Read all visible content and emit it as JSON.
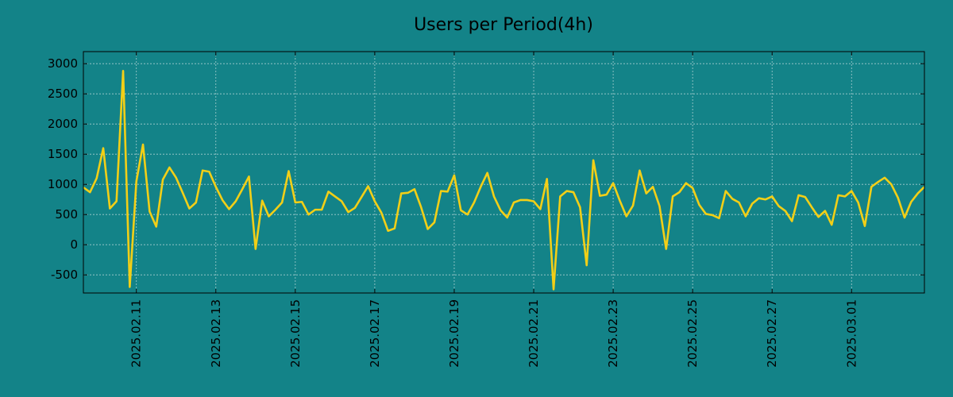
{
  "colors": {
    "background": "#138388",
    "line": "#f2cf17",
    "grid": "#d8e6e6",
    "text": "#000000"
  },
  "chart_data": {
    "type": "line",
    "title": "Users per Period(4h)",
    "xlabel": "",
    "ylabel": "",
    "grid": true,
    "legend": "none",
    "x_start": "2025.02.09 16:00",
    "x_interval_hours": 4,
    "xlim_periods": [
      0,
      127
    ],
    "ylim": [
      -800,
      3200
    ],
    "yticks": [
      -500,
      0,
      500,
      1000,
      1500,
      2000,
      2500,
      3000
    ],
    "xticks": [
      {
        "label": "2025.02.11",
        "period": 8
      },
      {
        "label": "2025.02.13",
        "period": 20
      },
      {
        "label": "2025.02.15",
        "period": 32
      },
      {
        "label": "2025.02.17",
        "period": 44
      },
      {
        "label": "2025.02.19",
        "period": 56
      },
      {
        "label": "2025.02.21",
        "period": 68
      },
      {
        "label": "2025.02.23",
        "period": 80
      },
      {
        "label": "2025.02.25",
        "period": 92
      },
      {
        "label": "2025.02.27",
        "period": 104
      },
      {
        "label": "2025.03.01",
        "period": 116
      }
    ],
    "series": [
      {
        "name": "Users",
        "values": [
          950,
          870,
          1100,
          1600,
          600,
          720,
          2880,
          -700,
          1050,
          1660,
          550,
          300,
          1080,
          1280,
          1110,
          860,
          600,
          700,
          1230,
          1210,
          960,
          740,
          590,
          720,
          920,
          1130,
          -70,
          730,
          470,
          580,
          700,
          1220,
          700,
          710,
          500,
          580,
          580,
          880,
          800,
          720,
          540,
          610,
          790,
          970,
          720,
          530,
          230,
          270,
          850,
          860,
          920,
          620,
          260,
          370,
          890,
          880,
          1150,
          570,
          500,
          700,
          960,
          1190,
          800,
          570,
          450,
          700,
          740,
          740,
          720,
          590,
          1090,
          -740,
          800,
          890,
          870,
          620,
          -340,
          1400,
          810,
          830,
          1020,
          730,
          470,
          650,
          1230,
          850,
          960,
          640,
          -70,
          800,
          870,
          1020,
          940,
          660,
          510,
          490,
          440,
          890,
          760,
          700,
          470,
          680,
          770,
          750,
          800,
          640,
          560,
          390,
          820,
          790,
          620,
          460,
          560,
          330,
          820,
          800,
          890,
          700,
          310,
          960,
          1040,
          1110,
          1000,
          780,
          450,
          710,
          850,
          960
        ]
      }
    ]
  }
}
